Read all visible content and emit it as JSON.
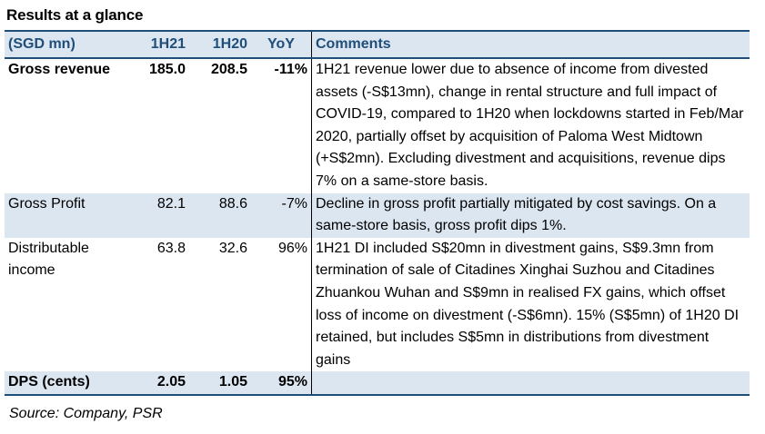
{
  "title": "Results at a glance",
  "table": {
    "headers": [
      "(SGD mn)",
      "1H21",
      "1H20",
      "YoY",
      "Comments"
    ],
    "rows": [
      {
        "label": "Gross revenue",
        "h21": "185.0",
        "h20": "208.5",
        "yoy": "-11%",
        "comment": "1H21 revenue lower due to absence of income from divested assets (-S$13mn), change in rental structure and full impact of COVID-19, compared to 1H20 when lockdowns started in Feb/Mar 2020, partially offset by acquisition of Paloma West Midtown (+S$2mn). Excluding divestment and acquisitions, revenue dips 7% on a same-store basis."
      },
      {
        "label": "Gross Profit",
        "h21": "82.1",
        "h20": "88.6",
        "yoy": "-7%",
        "comment": "Decline in gross profit partially mitigated by cost savings. On a same-store basis, gross profit dips 1%."
      },
      {
        "label": "Distributable income",
        "h21": "63.8",
        "h20": "32.6",
        "yoy": "96%",
        "comment": "1H21 DI included S$20mn in divestment gains, S$9.3mn from termination of sale of Citadines Xinghai Suzhou and Citadines Zhuankou Wuhan and S$9mn in realised FX gains, which offset loss of income on divestment (-S$6mn). 15% (S$5mn) of 1H20 DI retained, but includes S$5mn in distributions from divestment gains"
      },
      {
        "label": "DPS (cents)",
        "h21": "2.05",
        "h20": "1.05",
        "yoy": "95%",
        "comment": ""
      }
    ]
  },
  "source": "Source: Company, PSR"
}
